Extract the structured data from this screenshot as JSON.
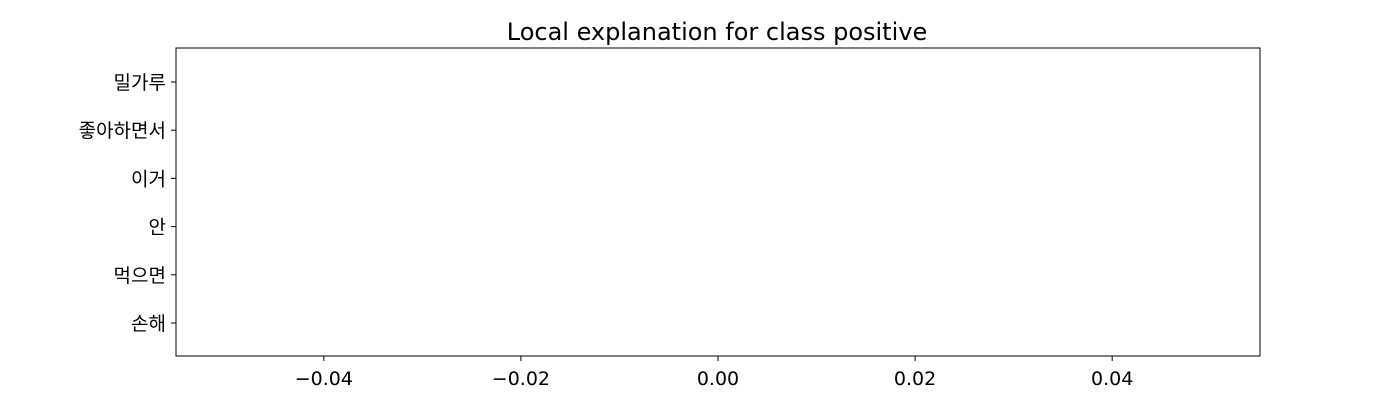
{
  "chart_data": {
    "type": "bar",
    "orientation": "horizontal",
    "title": "Local explanation for class positive",
    "xlabel": "",
    "ylabel": "",
    "categories": [
      "밀가루",
      "좋아하면서",
      "이거",
      "안",
      "먹으면",
      "손해"
    ],
    "values": [
      0,
      0,
      0,
      0,
      0,
      0
    ],
    "xlim": [
      -0.055,
      0.055
    ],
    "xticks": [
      -0.04,
      -0.02,
      0.0,
      0.02,
      0.04
    ],
    "xtick_labels": [
      "−0.04",
      "−0.02",
      "0.00",
      "0.02",
      "0.04"
    ],
    "grid": false,
    "bar_colors": {
      "positive": "#008000",
      "negative": "#ff0000"
    }
  }
}
